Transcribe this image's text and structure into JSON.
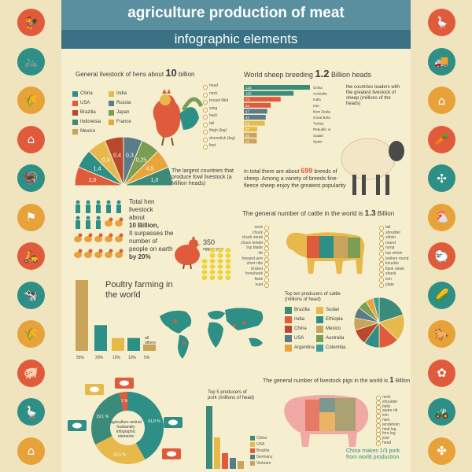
{
  "header": {
    "title": "agriculture  production of meat",
    "subtitle": "infographic elements"
  },
  "hens": {
    "heading_pre": "General livestock of hens about",
    "heading_num": "10",
    "heading_post": "billion",
    "legend": [
      {
        "name": "China",
        "color": "#2e8f86"
      },
      {
        "name": "India",
        "color": "#e7b94a"
      },
      {
        "name": "USA",
        "color": "#e05b3c"
      },
      {
        "name": "Russia",
        "color": "#5a7b8a"
      },
      {
        "name": "Brazilia",
        "color": "#b9482d"
      },
      {
        "name": "Japan",
        "color": "#7b9e54"
      },
      {
        "name": "Indonesia",
        "color": "#3c8a79"
      },
      {
        "name": "France",
        "color": "#e9a53a"
      },
      {
        "name": "Mexico",
        "color": "#c9a45a"
      }
    ],
    "rooster_parts": [
      "head",
      "neck",
      "breast fillet",
      "wing",
      "back",
      "tail",
      "thigh (leg)",
      "drumstick (leg)",
      "feet"
    ],
    "fan_labels": [
      "2,0",
      "1,4",
      "0,3",
      "0,4",
      "0,3",
      "0,25",
      "4,5",
      "1,0"
    ],
    "caption": "The largest countries that produce fowl livestock (a Million heads)"
  },
  "total_hens": {
    "lines": [
      "Total hen",
      "livestock",
      "about",
      "10 Billion,",
      "It surpasses the",
      "number of",
      "people on earth",
      "by 20%"
    ],
    "eggs": "350",
    "eggs_sub": "eggs a year"
  },
  "poultry": {
    "title": "Poultry farming in the world",
    "bars": [
      {
        "label": "55%",
        "value": 55,
        "color": "#c9a45a"
      },
      {
        "label": "20%",
        "value": 20,
        "color": "#2e8f86"
      },
      {
        "label": "10%",
        "value": 10,
        "color": "#e7b94a"
      },
      {
        "label": "10%",
        "value": 10,
        "color": "#2e8f86"
      },
      {
        "label": "5%",
        "value": 5,
        "color": "#c9a45a"
      }
    ],
    "others": "all others"
  },
  "sheep": {
    "heading_pre": "World sheep breeding",
    "heading_num": "1.2",
    "heading_post": "Billion heads",
    "bars": [
      {
        "name": "China",
        "value": 133,
        "color": "#3c8a79"
      },
      {
        "name": "Australia",
        "value": 100,
        "color": "#3c8a79"
      },
      {
        "name": "India",
        "value": 74,
        "color": "#e05b3c"
      },
      {
        "name": "Iran",
        "value": 54,
        "color": "#e05b3c"
      },
      {
        "name": "New Zealand",
        "value": 47,
        "color": "#5a7b8a"
      },
      {
        "name": "Great Britain",
        "value": 44,
        "color": "#5a7b8a"
      },
      {
        "name": "Turkey",
        "value": 42,
        "color": "#e7b94a"
      },
      {
        "name": "Republic of South Africa",
        "value": 27,
        "color": "#e7b94a"
      },
      {
        "name": "Sudan",
        "value": 26,
        "color": "#c9a45a"
      },
      {
        "name": "Spain",
        "value": 26,
        "color": "#c9a45a"
      }
    ],
    "caption": "the countries leaders with the greatest livestock of sheep (millions of the heads)",
    "breeds_pre": "In total there are about",
    "breeds_num": "699",
    "breeds_post": "breeds of sheep. Among a variety of breeds fine-fleece sheep enjoy the greatest popularity"
  },
  "cattle": {
    "heading_pre": "The general number of cattle in the world is",
    "heading_num": "1.3",
    "heading_post": "Billion",
    "left_parts": [
      "neck",
      "chuck",
      "chuck steak",
      "chuck tender",
      "top blade",
      "rib",
      "forward arm",
      "short ribs",
      "brisket",
      "foreshank",
      "flank",
      "suet"
    ],
    "right_parts": [
      "tail",
      "shoulder",
      "sirloin",
      "round",
      "rump",
      "top sirloin",
      "bottom round",
      "knuckle",
      "flank steak",
      "shank",
      "loin",
      "plate"
    ],
    "producers_title": "Top ten producers of cattle (millions of head)",
    "producers": [
      {
        "name": "Brazilia",
        "color": "#3c8a79"
      },
      {
        "name": "Sudan",
        "color": "#e7b94a"
      },
      {
        "name": "India",
        "color": "#e05b3c"
      },
      {
        "name": "Ethiopia",
        "color": "#2e8f86"
      },
      {
        "name": "China",
        "color": "#b9482d"
      },
      {
        "name": "Mexico",
        "color": "#c9a45a"
      },
      {
        "name": "USA",
        "color": "#5a7b8a"
      },
      {
        "name": "Australia",
        "color": "#7b9e54"
      },
      {
        "name": "Argentina",
        "color": "#e9a53a"
      },
      {
        "name": "Colombia",
        "color": "#3a9e9a"
      }
    ]
  },
  "pigs": {
    "heading_pre": "The general number of livestock pigs in the world is",
    "heading_num": "1",
    "heading_post": "Billion",
    "pork_title": "Top 5 producers of pork (millions of head)",
    "pork": [
      {
        "name": "China",
        "color": "#3c8a79"
      },
      {
        "name": "USA",
        "color": "#e7b94a"
      },
      {
        "name": "Brazilia",
        "color": "#e05b3c"
      },
      {
        "name": "Germany",
        "color": "#5a7b8a"
      },
      {
        "name": "Vietnam",
        "color": "#c9a45a"
      }
    ],
    "pig_parts": [
      "neck",
      "shoulder",
      "belly",
      "spare rib",
      "loin",
      "ham",
      "tenderloin",
      "hind leg",
      "fore leg",
      "jowl",
      "head"
    ],
    "china_note": "China makes 1/3 pork from world production"
  },
  "donut": {
    "center": "agriculture animal husbandry infographic elements",
    "labels": [
      "41,9 %",
      "25,5 %",
      "29,1 %",
      "1 %"
    ],
    "tag": "1%"
  },
  "icons_left": [
    "rooster-icon",
    "bicycle-icon",
    "wheat-icon",
    "farmhouse-icon",
    "turkey-icon",
    "weathervane-icon",
    "scooter-icon",
    "cow-icon",
    "grain-icon",
    "pig-icon",
    "goose-icon",
    "barn-icon"
  ],
  "icons_right": [
    "goose-icon",
    "truck-icon",
    "barn-icon",
    "vegetables-icon",
    "windmill-icon",
    "hen-icon",
    "sheep-icon",
    "corn-icon",
    "horse-icon",
    "sunflower-icon",
    "tractor-icon",
    "wind-turbine-icon"
  ],
  "colors": {
    "bg": "#f6efcf",
    "teal": "#2e8f86",
    "red": "#e05b3c",
    "orange": "#e7a23a",
    "header": "#5a8fa0"
  }
}
